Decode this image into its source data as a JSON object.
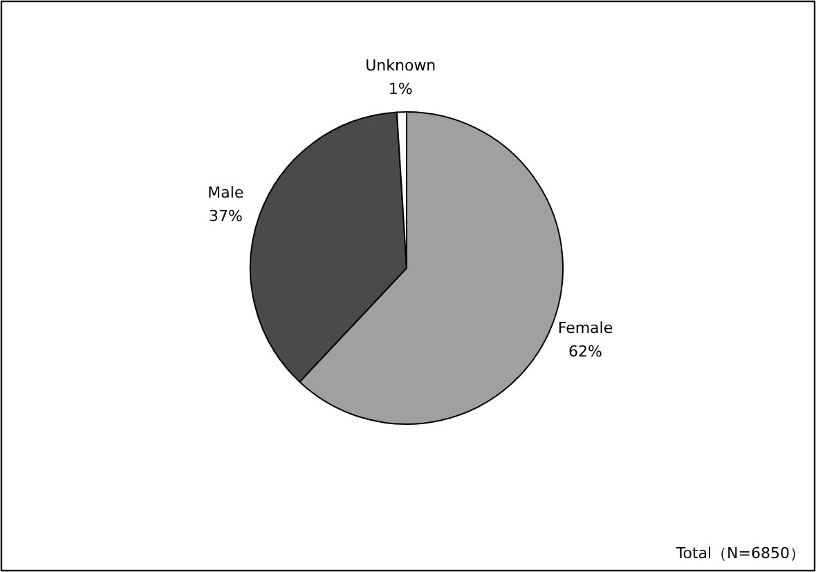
{
  "chart_data": {
    "type": "pie",
    "categories": [
      "Female",
      "Male",
      "Unknown"
    ],
    "values": [
      62,
      37,
      1
    ],
    "value_labels": [
      "62%",
      "37%",
      "1%"
    ],
    "colors": [
      "#a0a0a0",
      "#4a4a4a",
      "#ffffff"
    ],
    "annotations": [
      "Total（N=6850）"
    ]
  }
}
